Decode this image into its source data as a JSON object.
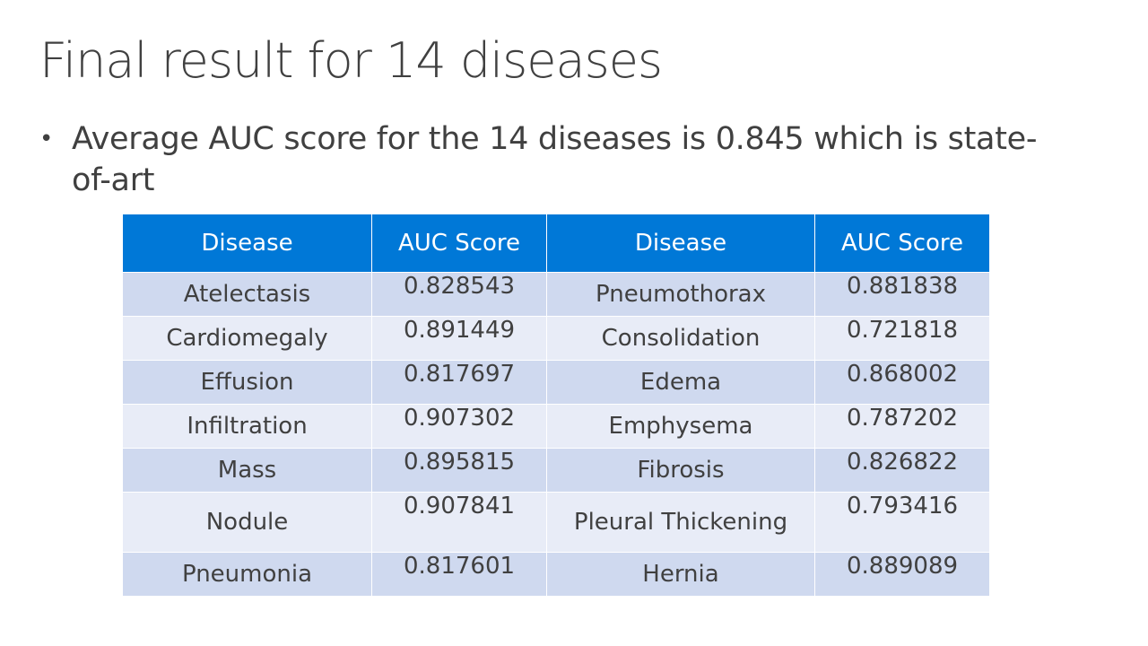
{
  "slide": {
    "title": "Final result for 14 diseases",
    "bullets": [
      {
        "symbol": "•",
        "text": "Average AUC score for the 14 diseases is 0.845 which is state-of-art"
      }
    ]
  },
  "table": {
    "headers": [
      "Disease",
      "AUC Score",
      "Disease",
      "AUC Score"
    ],
    "rows": [
      [
        "Atelectasis",
        "0.828543",
        "Pneumothorax",
        "0.881838"
      ],
      [
        "Cardiomegaly",
        "0.891449",
        "Consolidation",
        "0.721818"
      ],
      [
        "Effusion",
        "0.817697",
        "Edema",
        "0.868002"
      ],
      [
        "Infiltration",
        "0.907302",
        "Emphysema",
        "0.787202"
      ],
      [
        "Mass",
        "0.895815",
        "Fibrosis",
        "0.826822"
      ],
      [
        "Nodule",
        "0.907841",
        "Pleural Thickening",
        "0.793416"
      ],
      [
        "Pneumonia",
        "0.817601",
        "Hernia",
        "0.889089"
      ]
    ]
  },
  "colors": {
    "header_bg": "#0078d7",
    "row_dark": "#cfd9ef",
    "row_light": "#e8ecf7",
    "text": "#404040"
  }
}
